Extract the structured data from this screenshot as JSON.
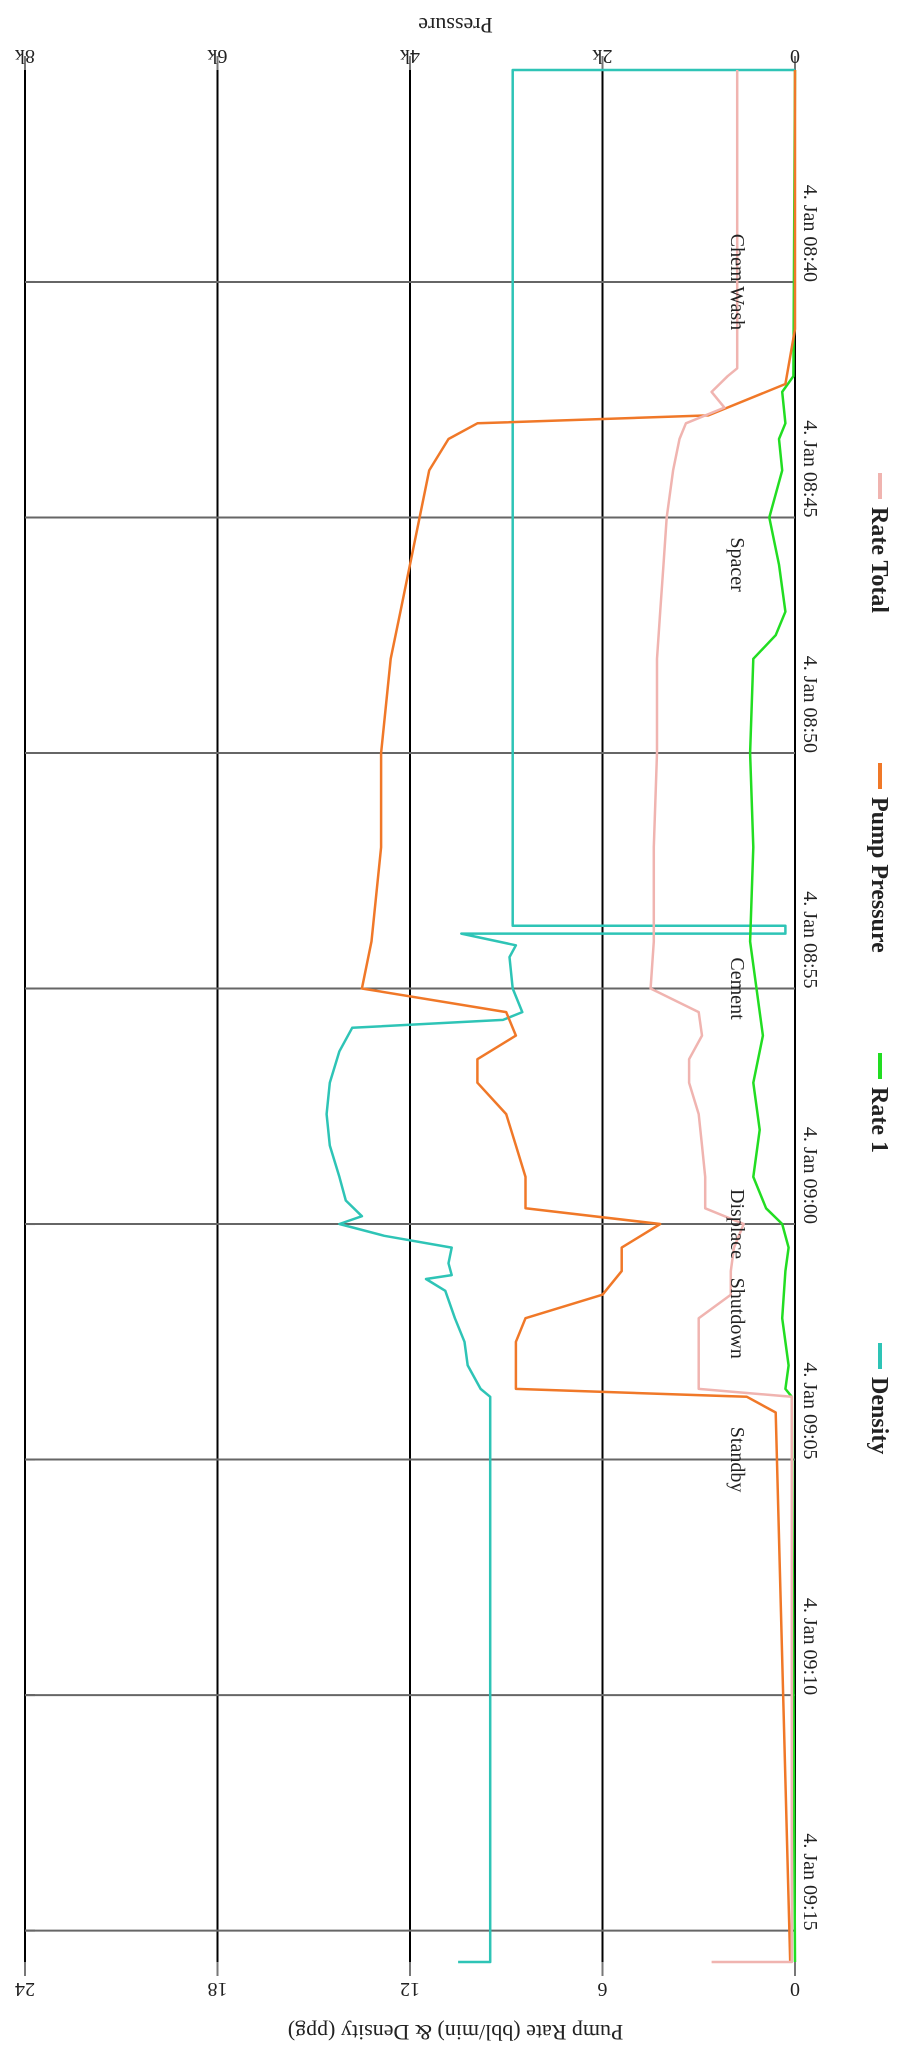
{
  "chart_data": {
    "type": "line",
    "orientation": "rotated-180",
    "title": "",
    "right_axis_title": "Pressure",
    "left_axis_title": "Pump Rate (bbl/min) & Density (ppg)",
    "pressure_axis": {
      "range": [
        0,
        8000
      ],
      "ticks": [
        0,
        2000,
        4000,
        6000,
        8000
      ],
      "tick_labels": [
        "0",
        "2k",
        "4k",
        "6k",
        "8k"
      ]
    },
    "rate_density_axis": {
      "range": [
        0,
        24
      ],
      "ticks": [
        0,
        6,
        12,
        18,
        24
      ],
      "tick_labels": [
        "0",
        "6",
        "12",
        "18",
        "24"
      ]
    },
    "time_axis": {
      "range": [
        "08:35:30",
        "09:15:40"
      ],
      "ticks": [
        "08:40",
        "08:45",
        "08:50",
        "08:55",
        "09:00",
        "09:05",
        "09:10",
        "09:15"
      ],
      "tick_labels": [
        "4. Jan 08:40",
        "4. Jan 08:45",
        "4. Jan 08:50",
        "4. Jan 08:55",
        "4. Jan 09:00",
        "4. Jan 09:05",
        "4. Jan 09:10",
        "4. Jan 09:15"
      ]
    },
    "grid": true,
    "legend_position": "bottom",
    "stage_annotations": [
      {
        "label": "Chem Wash",
        "time": "08:40"
      },
      {
        "label": "Spacer",
        "time": "08:46"
      },
      {
        "label": "Cement",
        "time": "08:55"
      },
      {
        "label": "Displace",
        "time": "09:00"
      },
      {
        "label": "Shutdown",
        "time": "09:02"
      },
      {
        "label": "Standby",
        "time": "09:05"
      }
    ],
    "series": [
      {
        "name": "Density",
        "color": "#2ec4b6",
        "axis": "rate_density",
        "points": [
          [
            "08:35:30",
            0
          ],
          [
            "08:35:30",
            8.8
          ],
          [
            "08:53:40",
            8.8
          ],
          [
            "08:53:40",
            0.3
          ],
          [
            "08:53:50",
            0.3
          ],
          [
            "08:53:50",
            10.4
          ],
          [
            "08:54:05",
            8.7
          ],
          [
            "08:54:20",
            8.9
          ],
          [
            "08:55:00",
            8.8
          ],
          [
            "08:55:30",
            8.5
          ],
          [
            "08:55:40",
            9.1
          ],
          [
            "08:55:50",
            13.8
          ],
          [
            "08:56:20",
            14.2
          ],
          [
            "08:57:00",
            14.5
          ],
          [
            "08:57:40",
            14.6
          ],
          [
            "08:58:20",
            14.5
          ],
          [
            "08:59:00",
            14.2
          ],
          [
            "08:59:30",
            14.0
          ],
          [
            "08:59:50",
            13.5
          ],
          [
            "09:00:00",
            14.2
          ],
          [
            "09:00:15",
            12.8
          ],
          [
            "09:00:30",
            10.7
          ],
          [
            "09:00:50",
            10.8
          ],
          [
            "09:01:05",
            10.7
          ],
          [
            "09:01:10",
            11.5
          ],
          [
            "09:01:25",
            10.9
          ],
          [
            "09:02:00",
            10.6
          ],
          [
            "09:02:30",
            10.3
          ],
          [
            "09:03:00",
            10.2
          ],
          [
            "09:03:30",
            9.8
          ],
          [
            "09:03:40",
            9.5
          ],
          [
            "09:15:40",
            9.5
          ],
          [
            "09:15:40",
            10.5
          ]
        ]
      },
      {
        "name": "Rate 1",
        "color": "#22dd22",
        "axis": "rate_density",
        "points": [
          [
            "08:35:30",
            0
          ],
          [
            "08:42:00",
            0.05
          ],
          [
            "08:42:20",
            0.4
          ],
          [
            "08:43:00",
            0.3
          ],
          [
            "08:43:20",
            0.5
          ],
          [
            "08:44:00",
            0.4
          ],
          [
            "08:45:00",
            0.8
          ],
          [
            "08:46:00",
            0.5
          ],
          [
            "08:47:00",
            0.3
          ],
          [
            "08:47:30",
            0.6
          ],
          [
            "08:48:00",
            1.3
          ],
          [
            "08:50:00",
            1.4
          ],
          [
            "08:52:00",
            1.3
          ],
          [
            "08:54:00",
            1.4
          ],
          [
            "08:55:00",
            1.2
          ],
          [
            "08:56:00",
            1.0
          ],
          [
            "08:57:00",
            1.3
          ],
          [
            "08:58:00",
            1.1
          ],
          [
            "08:59:00",
            1.3
          ],
          [
            "08:59:40",
            0.9
          ],
          [
            "09:00:00",
            0.4
          ],
          [
            "09:00:30",
            0.2
          ],
          [
            "09:01:00",
            0.3
          ],
          [
            "09:02:00",
            0.4
          ],
          [
            "09:03:00",
            0.2
          ],
          [
            "09:03:30",
            0.3
          ],
          [
            "09:03:40",
            0.1
          ],
          [
            "09:15:40",
            0.0
          ]
        ]
      },
      {
        "name": "Pump Pressure",
        "color": "#f07828",
        "axis": "pressure",
        "points": [
          [
            "08:35:30",
            0
          ],
          [
            "08:41:00",
            0
          ],
          [
            "08:42:10",
            0.1
          ],
          [
            "08:42:50",
            0.9
          ],
          [
            "08:43:00",
            3.3
          ],
          [
            "08:43:20",
            3.6
          ],
          [
            "08:44:00",
            3.8
          ],
          [
            "08:45:00",
            3.9
          ],
          [
            "08:46:00",
            4.0
          ],
          [
            "08:47:00",
            4.1
          ],
          [
            "08:48:00",
            4.2
          ],
          [
            "08:50:00",
            4.3
          ],
          [
            "08:52:00",
            4.3
          ],
          [
            "08:54:00",
            4.4
          ],
          [
            "08:55:00",
            4.5
          ],
          [
            "08:55:30",
            3.0
          ],
          [
            "08:56:00",
            2.9
          ],
          [
            "08:56:30",
            3.3
          ],
          [
            "08:57:00",
            3.3
          ],
          [
            "08:57:40",
            3.0
          ],
          [
            "08:58:20",
            2.9
          ],
          [
            "08:59:00",
            2.8
          ],
          [
            "08:59:40",
            2.8
          ],
          [
            "09:00:00",
            1.4
          ],
          [
            "09:00:30",
            1.8
          ],
          [
            "09:01:00",
            1.8
          ],
          [
            "09:01:30",
            2.0
          ],
          [
            "09:02:00",
            2.8
          ],
          [
            "09:02:30",
            2.9
          ],
          [
            "09:03:30",
            2.9
          ],
          [
            "09:03:40",
            0.5
          ],
          [
            "09:04:00",
            0.2
          ],
          [
            "09:15:40",
            0.05
          ]
        ]
      },
      {
        "name": "Rate Total",
        "color": "#f0b4b0",
        "axis": "rate_density",
        "points": [
          [
            "08:35:30",
            1.8
          ],
          [
            "08:41:50",
            1.8
          ],
          [
            "08:42:00",
            2.1
          ],
          [
            "08:42:20",
            2.6
          ],
          [
            "08:42:40",
            2.2
          ],
          [
            "08:43:00",
            3.4
          ],
          [
            "08:43:20",
            3.6
          ],
          [
            "08:44:00",
            3.8
          ],
          [
            "08:45:00",
            4.0
          ],
          [
            "08:46:00",
            4.1
          ],
          [
            "08:47:00",
            4.2
          ],
          [
            "08:48:00",
            4.3
          ],
          [
            "08:50:00",
            4.3
          ],
          [
            "08:52:00",
            4.4
          ],
          [
            "08:54:00",
            4.4
          ],
          [
            "08:55:00",
            4.5
          ],
          [
            "08:55:30",
            3.0
          ],
          [
            "08:56:00",
            2.9
          ],
          [
            "08:56:30",
            3.3
          ],
          [
            "08:57:00",
            3.3
          ],
          [
            "08:57:40",
            3.0
          ],
          [
            "08:58:20",
            2.9
          ],
          [
            "08:59:00",
            2.8
          ],
          [
            "08:59:40",
            2.8
          ],
          [
            "09:00:00",
            1.6
          ],
          [
            "09:00:30",
            1.9
          ],
          [
            "09:01:00",
            2.0
          ],
          [
            "09:01:30",
            2.0
          ],
          [
            "09:02:00",
            3.0
          ],
          [
            "09:02:30",
            3.0
          ],
          [
            "09:03:30",
            3.0
          ],
          [
            "09:03:40",
            0.1
          ],
          [
            "09:15:40",
            0.1
          ],
          [
            "09:15:40",
            2.6
          ]
        ]
      }
    ]
  }
}
